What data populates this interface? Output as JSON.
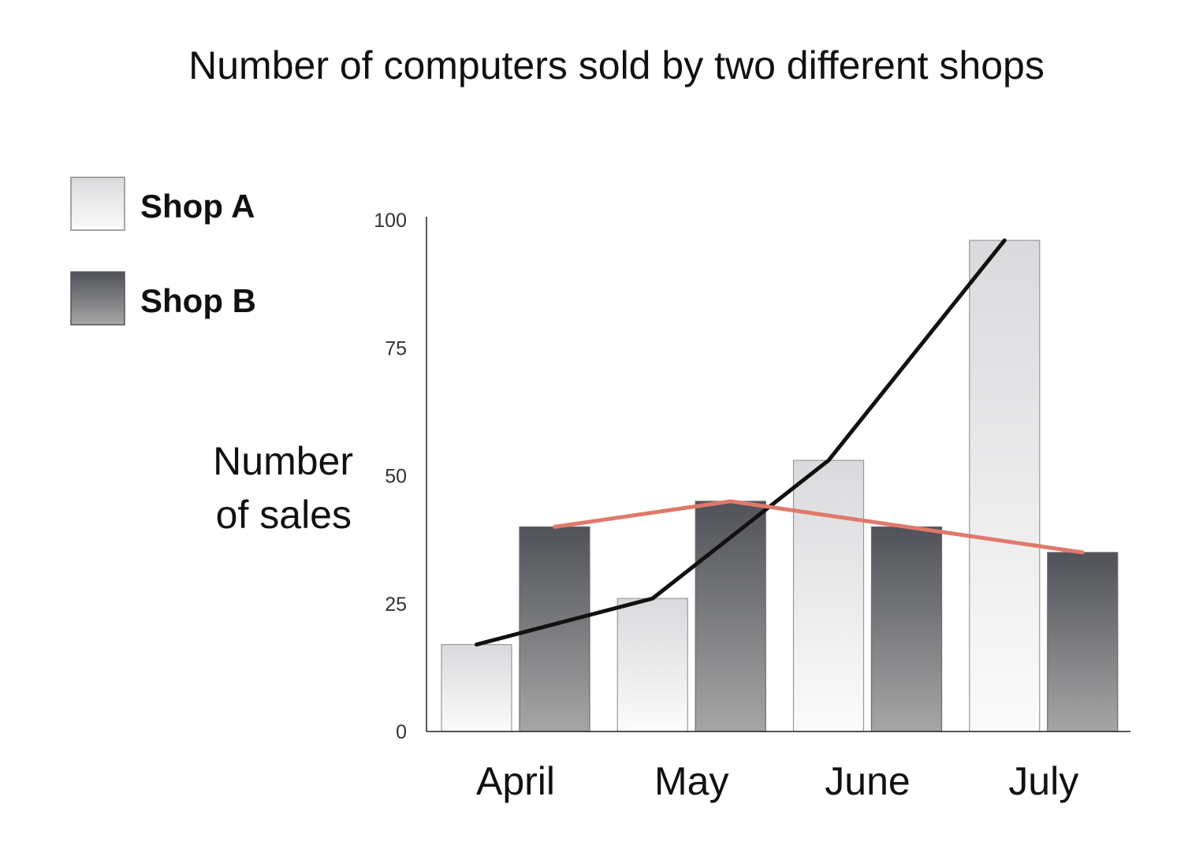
{
  "chart_data": {
    "type": "bar",
    "title": "Number of computers sold by two different shops",
    "ylabel_lines": [
      "Number",
      "of sales"
    ],
    "xlabel": "",
    "categories": [
      "April",
      "May",
      "June",
      "July"
    ],
    "ylim": [
      0,
      100
    ],
    "yticks": [
      0,
      25,
      50,
      75,
      100
    ],
    "grid": false,
    "legend_position": "top-left",
    "series": [
      {
        "name": "Shop A",
        "values": [
          17,
          26,
          53,
          96
        ],
        "color": "#e4e4e6"
      },
      {
        "name": "Shop B",
        "values": [
          40,
          45,
          40,
          35
        ],
        "color": "#55575d"
      }
    ],
    "trend_lines": [
      {
        "series": "Shop A",
        "color": "#111111"
      },
      {
        "series": "Shop B",
        "color": "#e0796b"
      }
    ]
  }
}
